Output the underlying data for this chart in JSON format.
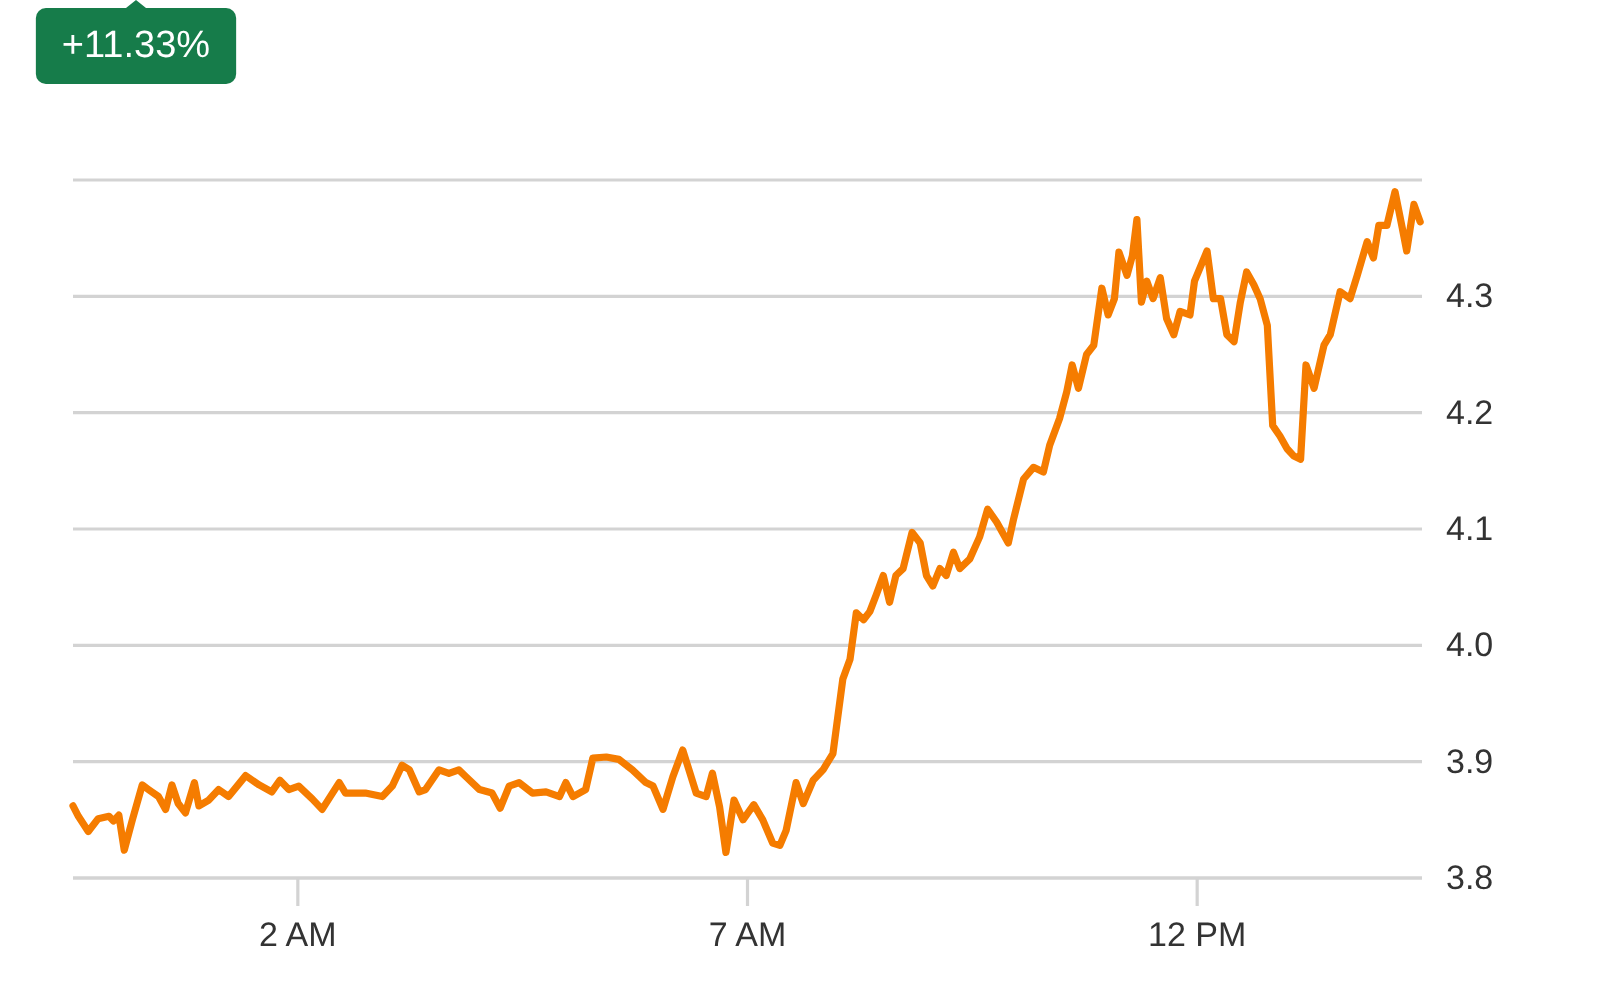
{
  "chart_data": {
    "type": "line",
    "annotations": [
      "+11.33%"
    ],
    "x": [
      -0.5,
      -0.44,
      -0.33,
      -0.22,
      -0.1,
      -0.05,
      0.01,
      0.07,
      0.16,
      0.27,
      0.34,
      0.45,
      0.53,
      0.6,
      0.67,
      0.75,
      0.85,
      0.9,
      1.01,
      1.12,
      1.23,
      1.42,
      1.57,
      1.71,
      1.8,
      1.9,
      2.01,
      2.16,
      2.27,
      2.46,
      2.53,
      2.75,
      2.94,
      3.05,
      3.16,
      3.24,
      3.35,
      3.42,
      3.57,
      3.68,
      3.79,
      3.87,
      4.02,
      4.16,
      4.25,
      4.35,
      4.46,
      4.61,
      4.76,
      4.91,
      4.98,
      5.06,
      5.2,
      5.28,
      5.43,
      5.57,
      5.72,
      5.87,
      5.95,
      6.06,
      6.17,
      6.28,
      6.43,
      6.54,
      6.61,
      6.69,
      6.76,
      6.85,
      6.95,
      7.07,
      7.17,
      7.28,
      7.36,
      7.43,
      7.54,
      7.62,
      7.73,
      7.84,
      7.95,
      8.06,
      8.14,
      8.21,
      8.29,
      8.36,
      8.43,
      8.51,
      8.58,
      8.65,
      8.73,
      8.83,
      8.92,
      8.99,
      9.06,
      9.14,
      9.21,
      9.29,
      9.36,
      9.47,
      9.58,
      9.67,
      9.77,
      9.9,
      9.96,
      10.07,
      10.18,
      10.29,
      10.36,
      10.47,
      10.55,
      10.61,
      10.68,
      10.77,
      10.85,
      10.94,
      11.01,
      11.08,
      11.13,
      11.22,
      11.28,
      11.33,
      11.38,
      11.44,
      11.51,
      11.59,
      11.66,
      11.74,
      11.81,
      11.92,
      11.97,
      12.11,
      12.18,
      12.26,
      12.33,
      12.41,
      12.48,
      12.55,
      12.63,
      12.7,
      12.78,
      12.84,
      12.92,
      13.0,
      13.07,
      13.15,
      13.21,
      13.3,
      13.41,
      13.48,
      13.59,
      13.7,
      13.78,
      13.89,
      13.96,
      14.02,
      14.11,
      14.2,
      14.28,
      14.33,
      14.41,
      14.48
    ],
    "series": [
      {
        "color": "#f57c00",
        "values": [
          3.862,
          3.853,
          3.84,
          3.851,
          3.853,
          3.849,
          3.854,
          3.824,
          3.85,
          3.88,
          3.876,
          3.87,
          3.859,
          3.88,
          3.864,
          3.856,
          3.882,
          3.862,
          3.867,
          3.876,
          3.87,
          3.888,
          3.88,
          3.874,
          3.884,
          3.876,
          3.879,
          3.868,
          3.859,
          3.882,
          3.873,
          3.873,
          3.87,
          3.879,
          3.897,
          3.893,
          3.874,
          3.876,
          3.893,
          3.89,
          3.893,
          3.887,
          3.876,
          3.873,
          3.86,
          3.879,
          3.882,
          3.873,
          3.874,
          3.87,
          3.882,
          3.87,
          3.876,
          3.903,
          3.904,
          3.902,
          3.893,
          3.882,
          3.879,
          3.859,
          3.887,
          3.91,
          3.873,
          3.87,
          3.89,
          3.861,
          3.822,
          3.867,
          3.85,
          3.863,
          3.85,
          3.83,
          3.828,
          3.841,
          3.882,
          3.864,
          3.884,
          3.893,
          3.907,
          3.971,
          3.988,
          4.028,
          4.022,
          4.029,
          4.043,
          4.06,
          4.037,
          4.06,
          4.066,
          4.097,
          4.088,
          4.06,
          4.051,
          4.066,
          4.06,
          4.08,
          4.066,
          4.074,
          4.093,
          4.117,
          4.106,
          4.088,
          4.109,
          4.143,
          4.153,
          4.149,
          4.172,
          4.195,
          4.218,
          4.241,
          4.221,
          4.25,
          4.258,
          4.307,
          4.284,
          4.298,
          4.338,
          4.318,
          4.335,
          4.366,
          4.295,
          4.313,
          4.298,
          4.316,
          4.281,
          4.267,
          4.287,
          4.284,
          4.313,
          4.339,
          4.298,
          4.298,
          4.267,
          4.261,
          4.295,
          4.321,
          4.31,
          4.298,
          4.275,
          4.189,
          4.18,
          4.169,
          4.163,
          4.16,
          4.241,
          4.221,
          4.258,
          4.267,
          4.304,
          4.298,
          4.318,
          4.347,
          4.333,
          4.361,
          4.361,
          4.39,
          4.359,
          4.339,
          4.379,
          4.364
        ]
      }
    ],
    "xlim": [
      -0.5,
      14.5
    ],
    "xticks": [
      {
        "value": 2,
        "label": "2 AM"
      },
      {
        "value": 7,
        "label": "7 AM"
      },
      {
        "value": 12,
        "label": "12 PM"
      }
    ],
    "ylim": [
      3.8,
      4.4
    ],
    "yticks": [
      3.8,
      3.9,
      {
        "value": 4,
        "label": "4.0"
      },
      4.1,
      4.2,
      4.3,
      {
        "value": 4.4,
        "label": null
      }
    ],
    "grid": "y"
  }
}
